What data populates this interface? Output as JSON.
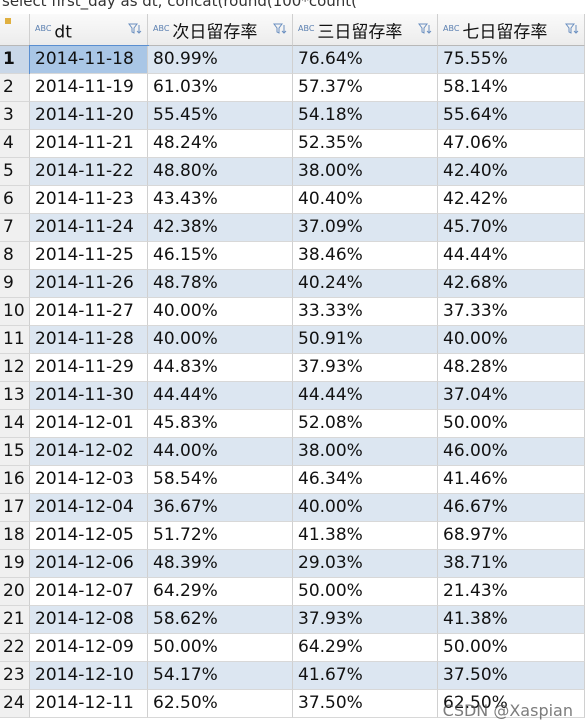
{
  "query_text": "select first_day as dt, concat(round(100*count(",
  "columns": [
    {
      "type": "ABC",
      "name": "dt"
    },
    {
      "type": "ABC",
      "name": "次日留存率"
    },
    {
      "type": "ABC",
      "name": "三日留存率"
    },
    {
      "type": "ABC",
      "name": "七日留存率"
    }
  ],
  "rows": [
    {
      "n": 1,
      "cells": [
        "2014-11-18",
        "80.99%",
        "76.64%",
        "75.55%"
      ]
    },
    {
      "n": 2,
      "cells": [
        "2014-11-19",
        "61.03%",
        "57.37%",
        "58.14%"
      ]
    },
    {
      "n": 3,
      "cells": [
        "2014-11-20",
        "55.45%",
        "54.18%",
        "55.64%"
      ]
    },
    {
      "n": 4,
      "cells": [
        "2014-11-21",
        "48.24%",
        "52.35%",
        "47.06%"
      ]
    },
    {
      "n": 5,
      "cells": [
        "2014-11-22",
        "48.80%",
        "38.00%",
        "42.40%"
      ]
    },
    {
      "n": 6,
      "cells": [
        "2014-11-23",
        "43.43%",
        "40.40%",
        "42.42%"
      ]
    },
    {
      "n": 7,
      "cells": [
        "2014-11-24",
        "42.38%",
        "37.09%",
        "45.70%"
      ]
    },
    {
      "n": 8,
      "cells": [
        "2014-11-25",
        "46.15%",
        "38.46%",
        "44.44%"
      ]
    },
    {
      "n": 9,
      "cells": [
        "2014-11-26",
        "48.78%",
        "40.24%",
        "42.68%"
      ]
    },
    {
      "n": 10,
      "cells": [
        "2014-11-27",
        "40.00%",
        "33.33%",
        "37.33%"
      ]
    },
    {
      "n": 11,
      "cells": [
        "2014-11-28",
        "40.00%",
        "50.91%",
        "40.00%"
      ]
    },
    {
      "n": 12,
      "cells": [
        "2014-11-29",
        "44.83%",
        "37.93%",
        "48.28%"
      ]
    },
    {
      "n": 13,
      "cells": [
        "2014-11-30",
        "44.44%",
        "44.44%",
        "37.04%"
      ]
    },
    {
      "n": 14,
      "cells": [
        "2014-12-01",
        "45.83%",
        "52.08%",
        "50.00%"
      ]
    },
    {
      "n": 15,
      "cells": [
        "2014-12-02",
        "44.00%",
        "38.00%",
        "46.00%"
      ]
    },
    {
      "n": 16,
      "cells": [
        "2014-12-03",
        "58.54%",
        "46.34%",
        "41.46%"
      ]
    },
    {
      "n": 17,
      "cells": [
        "2014-12-04",
        "36.67%",
        "40.00%",
        "46.67%"
      ]
    },
    {
      "n": 18,
      "cells": [
        "2014-12-05",
        "51.72%",
        "41.38%",
        "68.97%"
      ]
    },
    {
      "n": 19,
      "cells": [
        "2014-12-06",
        "48.39%",
        "29.03%",
        "38.71%"
      ]
    },
    {
      "n": 20,
      "cells": [
        "2014-12-07",
        "64.29%",
        "50.00%",
        "21.43%"
      ]
    },
    {
      "n": 21,
      "cells": [
        "2014-12-08",
        "58.62%",
        "37.93%",
        "41.38%"
      ]
    },
    {
      "n": 22,
      "cells": [
        "2014-12-09",
        "50.00%",
        "64.29%",
        "50.00%"
      ]
    },
    {
      "n": 23,
      "cells": [
        "2014-12-10",
        "54.17%",
        "41.67%",
        "37.50%"
      ]
    },
    {
      "n": 24,
      "cells": [
        "2014-12-11",
        "62.50%",
        "37.50%",
        "62.50%"
      ]
    }
  ],
  "watermark": "CSDN @Xaspian"
}
